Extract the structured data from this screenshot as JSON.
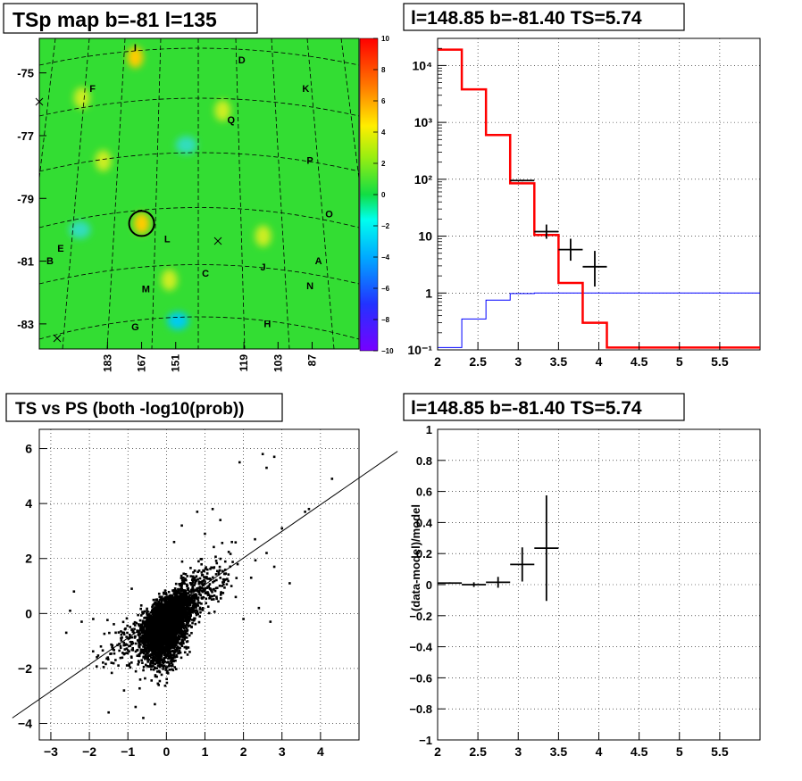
{
  "panels": {
    "tsmap": {
      "title": "TSp map b=-81 l=135",
      "b_ticks": [
        "-75",
        "-77",
        "-79",
        "-81",
        "-83"
      ],
      "l_ticks": [
        "183",
        "167",
        "151",
        "119",
        "103",
        "87"
      ],
      "colorbar_ticks": [
        "10",
        "8",
        "6",
        "4",
        "2",
        "0",
        "−2",
        "−4",
        "−6",
        "−8",
        "−10"
      ],
      "source_labels": [
        "D",
        "F",
        "K",
        "Q",
        "P",
        "O",
        "E",
        "B",
        "L",
        "J",
        "A",
        "N",
        "M",
        "C",
        "H",
        "G",
        "I"
      ]
    },
    "spectrum": {
      "title": "l=148.85 b=-81.40 TS=5.74",
      "x_ticks": [
        "2",
        "2.5",
        "3",
        "3.5",
        "4",
        "4.5",
        "5",
        "5.5"
      ],
      "y_ticks": [
        "10⁻¹",
        "1",
        "10",
        "10²",
        "10³",
        "10⁴"
      ]
    },
    "scatter": {
      "title": "TS vs PS (both -log10(prob))",
      "x_ticks": [
        "−3",
        "−2",
        "−1",
        "0",
        "1",
        "2",
        "3",
        "4"
      ],
      "y_ticks": [
        "−4",
        "−2",
        "0",
        "2",
        "4",
        "6"
      ]
    },
    "residual": {
      "title": "l=148.85 b=-81.40 TS=5.74",
      "ylabel": "(data-model)/model",
      "x_ticks": [
        "2",
        "2.5",
        "3",
        "3.5",
        "4",
        "4.5",
        "5",
        "5.5"
      ],
      "y_ticks": [
        "−1",
        "−0.8",
        "−0.6",
        "−0.4",
        "−0.2",
        "0",
        "0.2",
        "0.4",
        "0.6",
        "0.8",
        "1"
      ]
    }
  },
  "colors": {
    "model_line": "#ff0000",
    "data_points": "#000000",
    "background_model": "#0000ff",
    "map_base": "#22dd22"
  },
  "chart_data": [
    {
      "type": "heatmap",
      "title": "TSp map b=-81 l=135",
      "ylabel": "b",
      "xlabel": "l",
      "colorbar_range": [
        -10,
        10
      ],
      "circle_marker": {
        "l": 167,
        "b": -79.8
      },
      "hot_spots": [
        {
          "l": 170,
          "b": -74.5,
          "value": 5
        },
        {
          "l": 195,
          "b": -75.8,
          "value": 4
        },
        {
          "l": 185,
          "b": -77.8,
          "value": 4
        },
        {
          "l": 167,
          "b": -79.8,
          "value": 5
        },
        {
          "l": 154,
          "b": -81.6,
          "value": 4
        },
        {
          "l": 129,
          "b": -76.2,
          "value": 3
        },
        {
          "l": 110,
          "b": -80.2,
          "value": 3
        }
      ],
      "cold_spots": [
        {
          "l": 146,
          "b": -77.3,
          "value": -2
        },
        {
          "l": 150,
          "b": -82.9,
          "value": -3
        },
        {
          "l": 196,
          "b": -80.0,
          "value": -2
        }
      ],
      "sources": [
        {
          "label": "D",
          "l": 120,
          "b": -74.7
        },
        {
          "label": "F",
          "l": 190,
          "b": -75.6
        },
        {
          "label": "K",
          "l": 90,
          "b": -75.6
        },
        {
          "label": "Q",
          "l": 125,
          "b": -76.6
        },
        {
          "label": "P",
          "l": 88,
          "b": -77.9
        },
        {
          "label": "O",
          "l": 79,
          "b": -79.6
        },
        {
          "label": "E",
          "l": 205,
          "b": -80.7
        },
        {
          "label": "B",
          "l": 210,
          "b": -81.1
        },
        {
          "label": "L",
          "l": 155,
          "b": -80.4
        },
        {
          "label": "J",
          "l": 110,
          "b": -81.3
        },
        {
          "label": "A",
          "l": 84,
          "b": -81.1
        },
        {
          "label": "N",
          "l": 88,
          "b": -81.9
        },
        {
          "label": "M",
          "l": 165,
          "b": -82.0
        },
        {
          "label": "C",
          "l": 137,
          "b": -81.5
        },
        {
          "label": "H",
          "l": 108,
          "b": -83.1
        },
        {
          "label": "G",
          "l": 170,
          "b": -83.2
        },
        {
          "label": "I",
          "l": 170,
          "b": -74.3
        }
      ]
    },
    {
      "type": "line",
      "title": "l=148.85 b=-81.40 TS=5.74",
      "xlim": [
        2,
        6
      ],
      "ylim": [
        0.1,
        30000
      ],
      "yscale": "log",
      "grid": true,
      "series": [
        {
          "bin_edges": [
            2.0,
            2.3,
            2.6,
            2.9,
            3.2,
            3.5,
            3.8,
            4.1,
            6.0
          ],
          "values": [
            19000,
            3800,
            600,
            85,
            10.5,
            1.5,
            0.3,
            0.11
          ]
        },
        {
          "bin_edges": [
            2.0,
            2.3,
            2.6,
            2.9,
            3.2,
            3.5,
            3.8,
            4.1,
            6.0
          ],
          "values": [
            0.11,
            0.35,
            0.75,
            0.98,
            1.0,
            1.0,
            1.0,
            1.0
          ]
        },
        {
          "points": [
            {
              "x": 3.05,
              "y": 95,
              "xerr": 0.15,
              "ylo": 92,
              "yhi": 98
            },
            {
              "x": 3.35,
              "y": 12,
              "xerr": 0.15,
              "ylo": 9,
              "yhi": 16
            },
            {
              "x": 3.65,
              "y": 5.8,
              "xerr": 0.15,
              "ylo": 3.7,
              "yhi": 9
            },
            {
              "x": 3.95,
              "y": 2.9,
              "xerr": 0.15,
              "ylo": 1.3,
              "yhi": 5.5
            }
          ]
        }
      ]
    },
    {
      "type": "scatter",
      "title": "TS vs PS (both -log10(prob))",
      "xlim": [
        -3.3,
        5.0
      ],
      "ylim": [
        -4.6,
        6.7
      ],
      "grid": true,
      "reference_line": {
        "x1": -4.0,
        "y1": -3.8,
        "x2": 6.0,
        "y2": 5.9
      },
      "core_points_approx": 4000,
      "outliers": [
        [
          4.3,
          4.9
        ],
        [
          3.7,
          3.8
        ],
        [
          3.6,
          3.7
        ],
        [
          2.8,
          5.7
        ],
        [
          2.6,
          5.3
        ],
        [
          2.5,
          5.8
        ],
        [
          1.9,
          5.5
        ],
        [
          1.4,
          3.4
        ],
        [
          1.7,
          2.6
        ],
        [
          2.3,
          2.7
        ],
        [
          2.6,
          2.2
        ],
        [
          3.0,
          3.1
        ],
        [
          2.8,
          1.7
        ],
        [
          3.2,
          1.1
        ],
        [
          2.2,
          1.3
        ],
        [
          1.8,
          0.6
        ],
        [
          2.7,
          -0.3
        ],
        [
          2.4,
          0.2
        ],
        [
          -2.4,
          0.8
        ],
        [
          -2.6,
          -0.7
        ],
        [
          -2.5,
          0.1
        ],
        [
          -2.2,
          -0.3
        ],
        [
          -1.5,
          -3.6
        ],
        [
          -1.7,
          -1.2
        ],
        [
          -1.9,
          -0.2
        ],
        [
          -0.8,
          -3.4
        ],
        [
          -0.6,
          -3.8
        ],
        [
          -0.3,
          -3.3
        ],
        [
          -0.2,
          -2.6
        ],
        [
          0.8,
          3.7
        ],
        [
          1.2,
          3.8
        ],
        [
          0.4,
          3.2
        ],
        [
          1.0,
          2.9
        ],
        [
          -1.1,
          -2.8
        ],
        [
          0.6,
          -0.8
        ],
        [
          2.0,
          -0.2
        ],
        [
          -0.9,
          0.9
        ],
        [
          0.2,
          2.6
        ]
      ]
    },
    {
      "type": "scatter",
      "title": "l=148.85 b=-81.40 TS=5.74",
      "ylabel": "(data-model)/model",
      "xlim": [
        2,
        6
      ],
      "ylim": [
        -1,
        1
      ],
      "grid": true,
      "points": [
        {
          "x": 2.15,
          "y": 0.01,
          "xerr": 0.15,
          "yerr": 0.005
        },
        {
          "x": 2.45,
          "y": 0.0,
          "xerr": 0.15,
          "yerr": 0.015
        },
        {
          "x": 2.75,
          "y": 0.015,
          "xerr": 0.15,
          "yerr": 0.035
        },
        {
          "x": 3.05,
          "y": 0.13,
          "xerr": 0.15,
          "yerr": 0.11
        },
        {
          "x": 3.35,
          "y": 0.235,
          "xerr": 0.15,
          "yerr": 0.34
        }
      ]
    }
  ]
}
